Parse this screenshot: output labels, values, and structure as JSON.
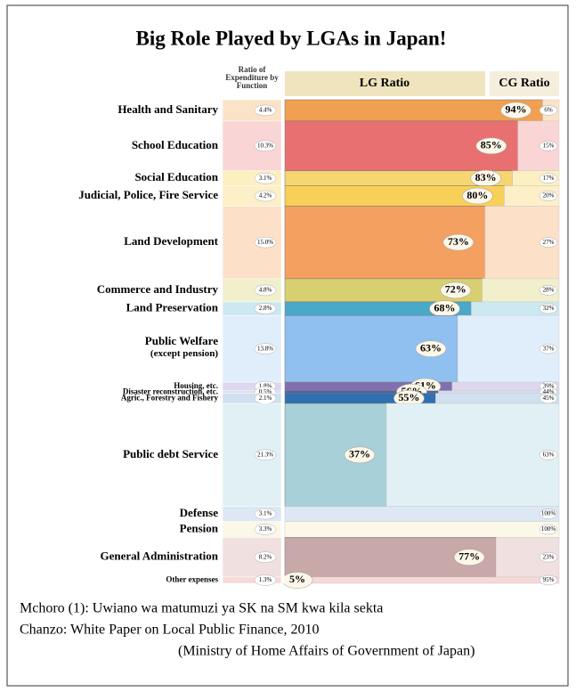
{
  "chart_data": {
    "type": "mekko",
    "title": "Big Role Played by LGAs in Japan!",
    "categories": [
      "Health and Sanitary",
      "School Education",
      "Social Education",
      "Judicial, Police, Fire Service",
      "Land Development",
      "Commerce and Industry",
      "Land Preservation",
      "Public Welfare (except pension)",
      "Housing, etc.",
      "Disaster reconstruction, etc.",
      "Agric., Forestry and Fishery",
      "Public debt Service",
      "Defense",
      "Pension",
      "General Administration",
      "Other expenses"
    ],
    "expenditure": {
      "name": "Ratio of Expenditure by Function",
      "values": [
        4.4,
        10.3,
        3.1,
        4.2,
        15.0,
        4.8,
        2.8,
        13.8,
        1.8,
        0.5,
        2.1,
        21.3,
        3.1,
        3.3,
        8.2,
        1.3
      ],
      "value_labels": [
        "4.4%",
        "10.3%",
        "3.1%",
        "4.2%",
        "15.0%",
        "4.8%",
        "2.8%",
        "13.8%",
        "1.8%",
        "0.5%",
        "2.1%",
        "21.3%",
        "3.1%",
        "3.3%",
        "8.2%",
        "1.3%"
      ]
    },
    "series": [
      {
        "name": "LG Ratio",
        "values": [
          94,
          85,
          83,
          80,
          73,
          72,
          68,
          63,
          61,
          56,
          55,
          37,
          0,
          0,
          77,
          5
        ],
        "value_labels": [
          "94%",
          "85%",
          "83%",
          "80%",
          "73%",
          "72%",
          "68%",
          "63%",
          "61%",
          "56%",
          "55%",
          "37%",
          null,
          null,
          "77%",
          "5%"
        ],
        "colors": [
          "#f0a050",
          "#e87070",
          "#f5d670",
          "#f8cf58",
          "#f4a060",
          "#d8d070",
          "#4aa8c8",
          "#8fc0f0",
          "#8070b0",
          "#5060a0",
          "#3070b0",
          "#a8d0d8",
          "#a8c0e0",
          "#f8f0c0",
          "#c8a8a8",
          "#e06060"
        ]
      },
      {
        "name": "CG Ratio",
        "values": [
          6,
          15,
          17,
          20,
          27,
          28,
          32,
          37,
          39,
          44,
          45,
          63,
          100,
          100,
          23,
          95
        ],
        "value_labels": [
          "6%",
          "15%",
          "17%",
          "20%",
          "27%",
          "28%",
          "32%",
          "37%",
          "39%",
          "44%",
          "45%",
          "63%",
          "100%",
          "100%",
          "23%",
          "95%"
        ],
        "colors": [
          "#fbe3c8",
          "#f9d5d5",
          "#fcf0c0",
          "#fdf0c8",
          "#fde0c8",
          "#f2efcc",
          "#cce8f0",
          "#e0eefc",
          "#ddd8ee",
          "#d8dcee",
          "#cfe0f0",
          "#e0f0f4",
          "#dde8f5",
          "#fcf8e8",
          "#f0e0e0",
          "#f8d8d8"
        ]
      }
    ],
    "xlim": [
      0,
      100
    ],
    "caption": [
      "Mchoro (1): Uwiano wa matumuzi ya SK na SM kwa kila sekta",
      "Chanzo: White Paper on Local Public Finance, 2010",
      "(Ministry of Home Affairs of Government of Japan)"
    ]
  }
}
